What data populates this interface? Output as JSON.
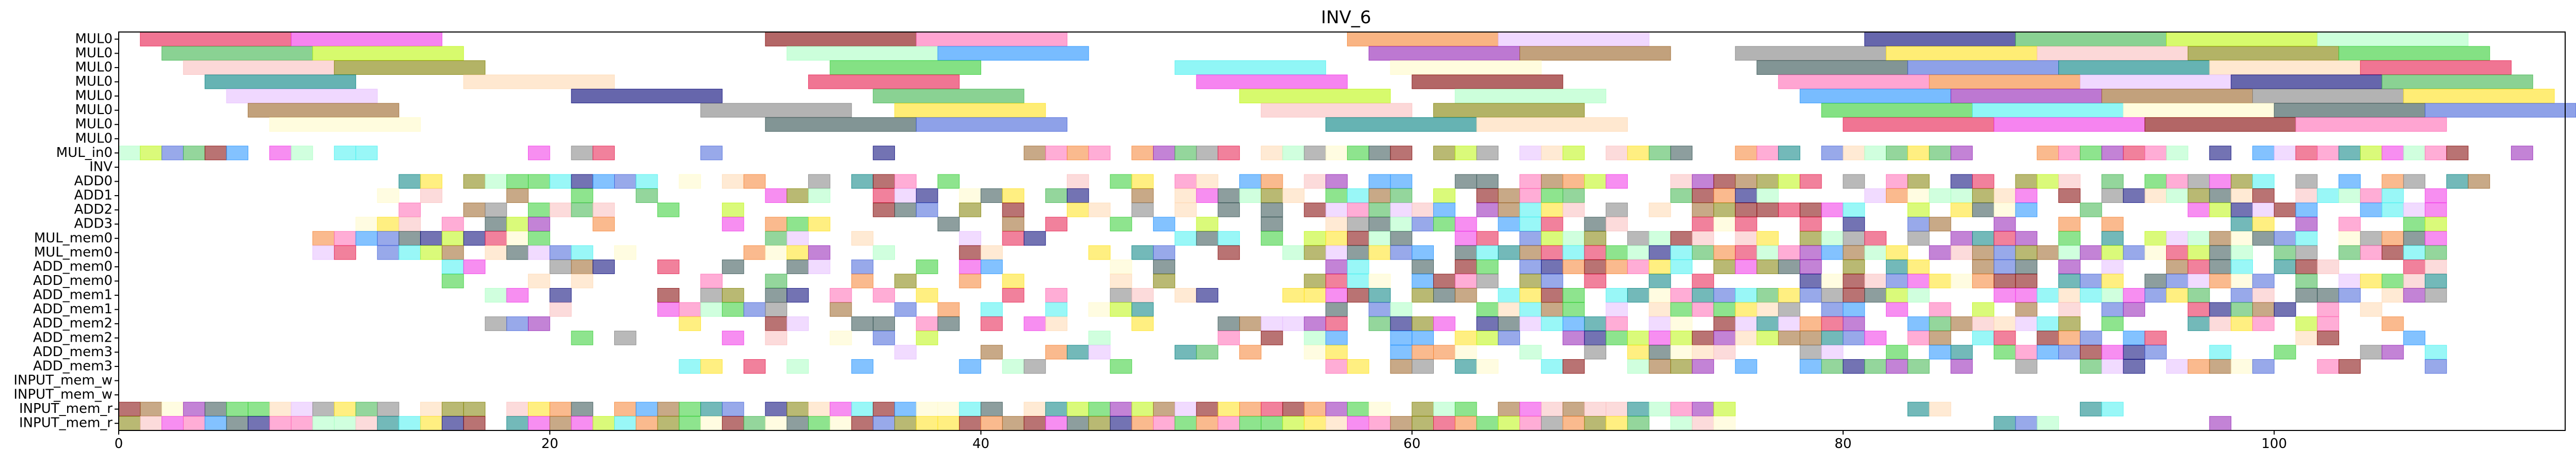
{
  "chart_data": {
    "type": "gantt",
    "title": "INV_6",
    "xlabel": "",
    "ylabel": "",
    "xlim": [
      0,
      113.5
    ],
    "xticks": [
      0,
      20,
      40,
      60,
      80,
      100
    ],
    "grid": false,
    "rows": [
      "MUL0",
      "MUL0",
      "MUL0",
      "MUL0",
      "MUL0",
      "MUL0",
      "MUL0",
      "MUL0",
      "MUL_in0",
      "INV",
      "ADD0",
      "ADD1",
      "ADD2",
      "ADD3",
      "MUL_mem0",
      "MUL_mem0",
      "ADD_mem0",
      "ADD_mem0",
      "ADD_mem1",
      "ADD_mem1",
      "ADD_mem2",
      "ADD_mem2",
      "ADD_mem3",
      "ADD_mem3",
      "INPUT_mem_w",
      "INPUT_mem_w",
      "INPUT_mem_r",
      "INPUT_mem_r"
    ],
    "palette": [
      "#e6194b",
      "#3cb44b",
      "#ffe119",
      "#4363d8",
      "#f58231",
      "#911eb4",
      "#46f0f0",
      "#f032e6",
      "#bcf60c",
      "#fabebe",
      "#008080",
      "#e6beff",
      "#9a6324",
      "#fffac8",
      "#800000",
      "#aaffc3",
      "#808000",
      "#ffd8b1",
      "#000075",
      "#808080",
      "#2f4f4f",
      "#ff69b4",
      "#1e90ff",
      "#32cd32"
    ],
    "long_tasks": [
      [
        0,
        1,
        8
      ],
      [
        0,
        8,
        15
      ],
      [
        0,
        30,
        37
      ],
      [
        0,
        37,
        44
      ],
      [
        0,
        57,
        64
      ],
      [
        0,
        64,
        71
      ],
      [
        0,
        81,
        88
      ],
      [
        0,
        88,
        95
      ],
      [
        0,
        95,
        102
      ],
      [
        0,
        102,
        109
      ],
      [
        1,
        2,
        9
      ],
      [
        1,
        9,
        16
      ],
      [
        1,
        31,
        38
      ],
      [
        1,
        38,
        45
      ],
      [
        1,
        58,
        65
      ],
      [
        1,
        65,
        72
      ],
      [
        1,
        75,
        82
      ],
      [
        1,
        82,
        89
      ],
      [
        1,
        89,
        96
      ],
      [
        1,
        96,
        103
      ],
      [
        1,
        103,
        110
      ],
      [
        2,
        3,
        10
      ],
      [
        2,
        10,
        17
      ],
      [
        2,
        33,
        40
      ],
      [
        2,
        49,
        56
      ],
      [
        2,
        59,
        66
      ],
      [
        2,
        76,
        83
      ],
      [
        2,
        83,
        90
      ],
      [
        2,
        90,
        97
      ],
      [
        2,
        97,
        104
      ],
      [
        2,
        104,
        111
      ],
      [
        3,
        4,
        11
      ],
      [
        3,
        16,
        23
      ],
      [
        3,
        32,
        39
      ],
      [
        3,
        50,
        57
      ],
      [
        3,
        60,
        67
      ],
      [
        3,
        77,
        84
      ],
      [
        3,
        84,
        91
      ],
      [
        3,
        91,
        98
      ],
      [
        3,
        98,
        105
      ],
      [
        3,
        105,
        112
      ],
      [
        4,
        5,
        12
      ],
      [
        4,
        21,
        28
      ],
      [
        4,
        35,
        42
      ],
      [
        4,
        52,
        59
      ],
      [
        4,
        62,
        69
      ],
      [
        4,
        78,
        85
      ],
      [
        4,
        85,
        92
      ],
      [
        4,
        92,
        99
      ],
      [
        4,
        99,
        106
      ],
      [
        4,
        106,
        113
      ],
      [
        5,
        6,
        13
      ],
      [
        5,
        27,
        34
      ],
      [
        5,
        36,
        43
      ],
      [
        5,
        53,
        60
      ],
      [
        5,
        61,
        68
      ],
      [
        5,
        79,
        86
      ],
      [
        5,
        86,
        93
      ],
      [
        5,
        93,
        100
      ],
      [
        5,
        100,
        107
      ],
      [
        5,
        107,
        114
      ],
      [
        6,
        7,
        14
      ],
      [
        6,
        30,
        37
      ],
      [
        6,
        37,
        44
      ],
      [
        6,
        56,
        63
      ],
      [
        6,
        63,
        70
      ],
      [
        6,
        80,
        87
      ],
      [
        6,
        87,
        94
      ],
      [
        6,
        94,
        101
      ],
      [
        6,
        101,
        108
      ]
    ]
  }
}
